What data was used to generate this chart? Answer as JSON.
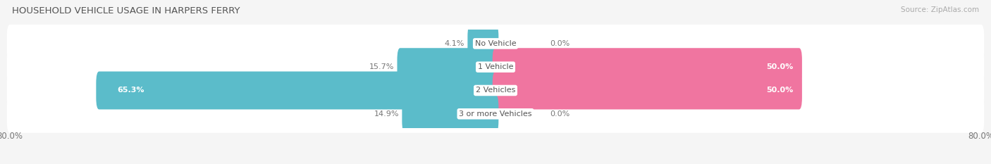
{
  "title": "HOUSEHOLD VEHICLE USAGE IN HARPERS FERRY",
  "source": "Source: ZipAtlas.com",
  "categories": [
    "No Vehicle",
    "1 Vehicle",
    "2 Vehicles",
    "3 or more Vehicles"
  ],
  "owner_values": [
    4.1,
    15.7,
    65.3,
    14.9
  ],
  "renter_values": [
    0.0,
    50.0,
    50.0,
    0.0
  ],
  "owner_color": "#5bbcca",
  "renter_color": "#f075a0",
  "renter_color_light": "#f5aac0",
  "axis_max": 80.0,
  "axis_label_left": "80.0%",
  "axis_label_right": "80.0%",
  "bg_color": "#f5f5f5",
  "bar_bg_color": "#e8e8e8",
  "row_bg_color": "#ebebeb",
  "title_color": "#555555",
  "source_color": "#aaaaaa",
  "label_color_dark": "#777777",
  "label_color_light": "#ffffff"
}
